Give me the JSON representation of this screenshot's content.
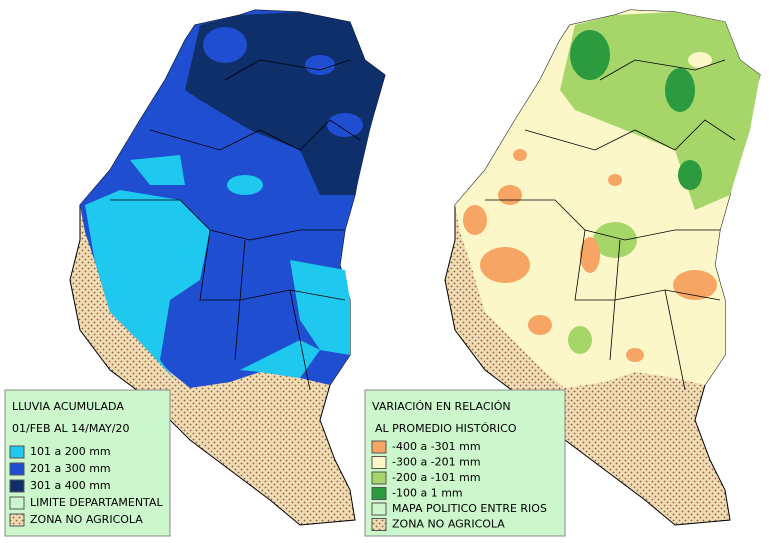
{
  "left_legend": {
    "title": "LLUVIA ACUMULADA",
    "subtitle": "01/FEB AL 14/MAY/20",
    "items": [
      {
        "label": "101 a 200 mm",
        "color": "#1ec8ef"
      },
      {
        "label": "201 a 300 mm",
        "color": "#1f4fd0"
      },
      {
        "label": "301 a 400 mm",
        "color": "#0e2f6a"
      },
      {
        "label": "LIMITE DEPARTAMENTAL",
        "color": "#ccf7cc"
      },
      {
        "label": "ZONA NO AGRICOLA",
        "color": "#f3dcb4",
        "pattern": "dots"
      }
    ]
  },
  "right_legend": {
    "title": "VARIACIÓN EN RELACIÓN",
    "subtitle": "AL PROMEDIO HISTÓRICO",
    "items": [
      {
        "label": "-400 a -301 mm",
        "color": "#f7a564"
      },
      {
        "label": "-300 a -201 mm",
        "color": "#fbf7c8"
      },
      {
        "label": "-200 a -101 mm",
        "color": "#a6d66a"
      },
      {
        "label": "-100 a 1 mm",
        "color": "#2c9a3e"
      },
      {
        "label": "MAPA POLITICO ENTRE RIOS",
        "color": "#ccf7cc"
      },
      {
        "label": "ZONA NO AGRICOLA",
        "color": "#f3dcb4",
        "pattern": "dots"
      }
    ]
  }
}
